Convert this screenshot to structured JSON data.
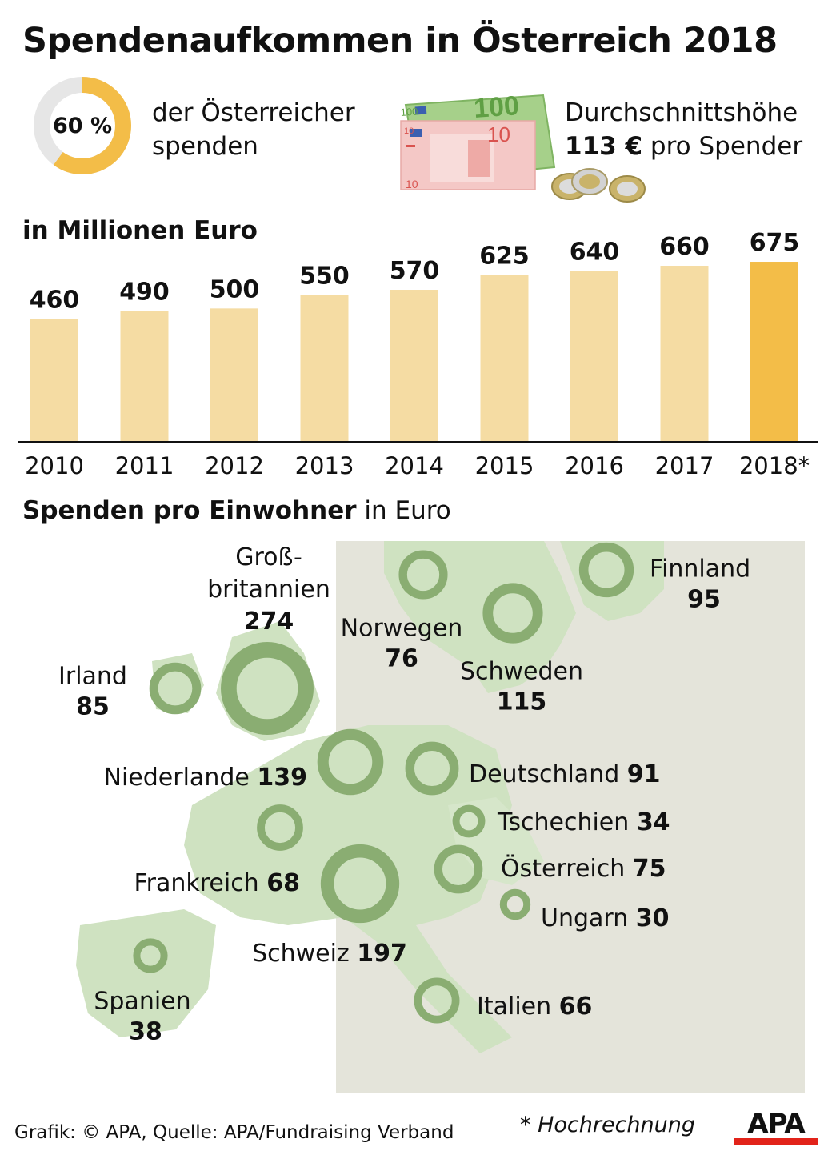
{
  "title": "Spendenaufkommen in Österreich 2018",
  "share": {
    "value": 60,
    "label": "60 %",
    "text_line1": "der Österreicher",
    "text_line2": "spenden",
    "color_fill": "#f3bd48",
    "color_track": "#e6e6e6"
  },
  "average": {
    "line1": "Durchschnittshöhe",
    "line2_bold": "113 €",
    "line2_rest": " pro Spender",
    "note_100": "100",
    "note_10": "10"
  },
  "chart_data": [
    {
      "type": "bar",
      "title": "in Millionen Euro",
      "categories": [
        "2010",
        "2011",
        "2012",
        "2013",
        "2014",
        "2015",
        "2016",
        "2017",
        "2018*"
      ],
      "values": [
        460,
        490,
        500,
        550,
        570,
        625,
        640,
        660,
        675
      ],
      "ylim": [
        0,
        700
      ],
      "grid": false,
      "colors": {
        "default": "#f5dca3",
        "highlight": "#f3bd48"
      },
      "highlight_index": 8
    },
    {
      "type": "bubble-map",
      "title": "Spenden pro Einwohner",
      "title_suffix": "in Euro",
      "colors": {
        "ring": "#8aad72",
        "land": "#cfe2c1",
        "land_other": "#e4e4da",
        "sea": "#ffffff"
      },
      "countries": [
        {
          "name": "Finnland",
          "value": 95
        },
        {
          "name": "Groß-britannien",
          "label_line1": "Groß-",
          "label_line2": "britannien",
          "value": 274
        },
        {
          "name": "Norwegen",
          "value": 76
        },
        {
          "name": "Schweden",
          "value": 115
        },
        {
          "name": "Irland",
          "value": 85
        },
        {
          "name": "Niederlande",
          "value": 139
        },
        {
          "name": "Deutschland",
          "value": 91
        },
        {
          "name": "Tschechien",
          "value": 34
        },
        {
          "name": "Frankreich",
          "value": 68
        },
        {
          "name": "Österreich",
          "value": 75
        },
        {
          "name": "Ungarn",
          "value": 30
        },
        {
          "name": "Schweiz",
          "value": 197
        },
        {
          "name": "Spanien",
          "value": 38
        },
        {
          "name": "Italien",
          "value": 66
        }
      ]
    }
  ],
  "footer": {
    "credit": "Grafik: © APA, Quelle: APA/Fundraising Verband",
    "footnote": "* Hochrechnung",
    "logo_text": "APA"
  }
}
